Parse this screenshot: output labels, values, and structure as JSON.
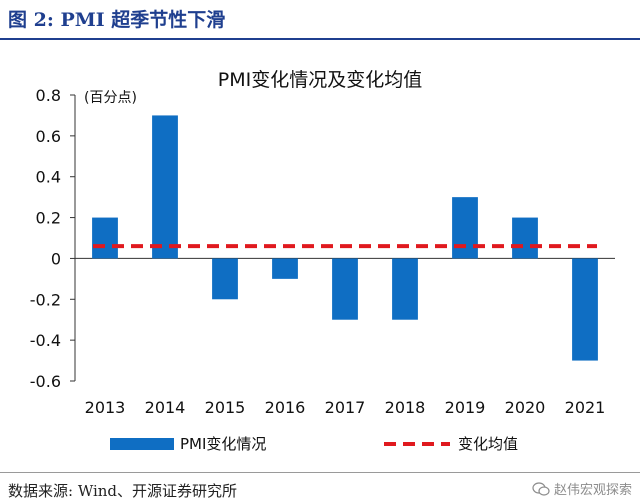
{
  "figure": {
    "title": "图 2:  PMI 超季节性下滑",
    "source": "数据来源:  Wind、开源证券研究所",
    "watermark": "赵伟宏观探索"
  },
  "chart_data": {
    "type": "bar",
    "title": "PMI变化情况及变化均值",
    "unit_label": "(百分点)",
    "categories": [
      "2013",
      "2014",
      "2015",
      "2016",
      "2017",
      "2018",
      "2019",
      "2020",
      "2021"
    ],
    "series": [
      {
        "name": "PMI变化情况",
        "type": "bar",
        "color": "#0f6ec3",
        "values": [
          0.2,
          0.7,
          -0.2,
          -0.1,
          -0.3,
          -0.3,
          0.3,
          0.2,
          -0.5
        ]
      },
      {
        "name": "变化均值",
        "type": "line",
        "style": "dashed",
        "color": "#e0191e",
        "value": 0.06
      }
    ],
    "ylim": [
      -0.6,
      0.8
    ],
    "yticks": [
      "0.8",
      "0.6",
      "0.4",
      "0.2",
      "0",
      "-0.2",
      "-0.4",
      "-0.6"
    ],
    "legend_position": "bottom",
    "grid": false
  }
}
